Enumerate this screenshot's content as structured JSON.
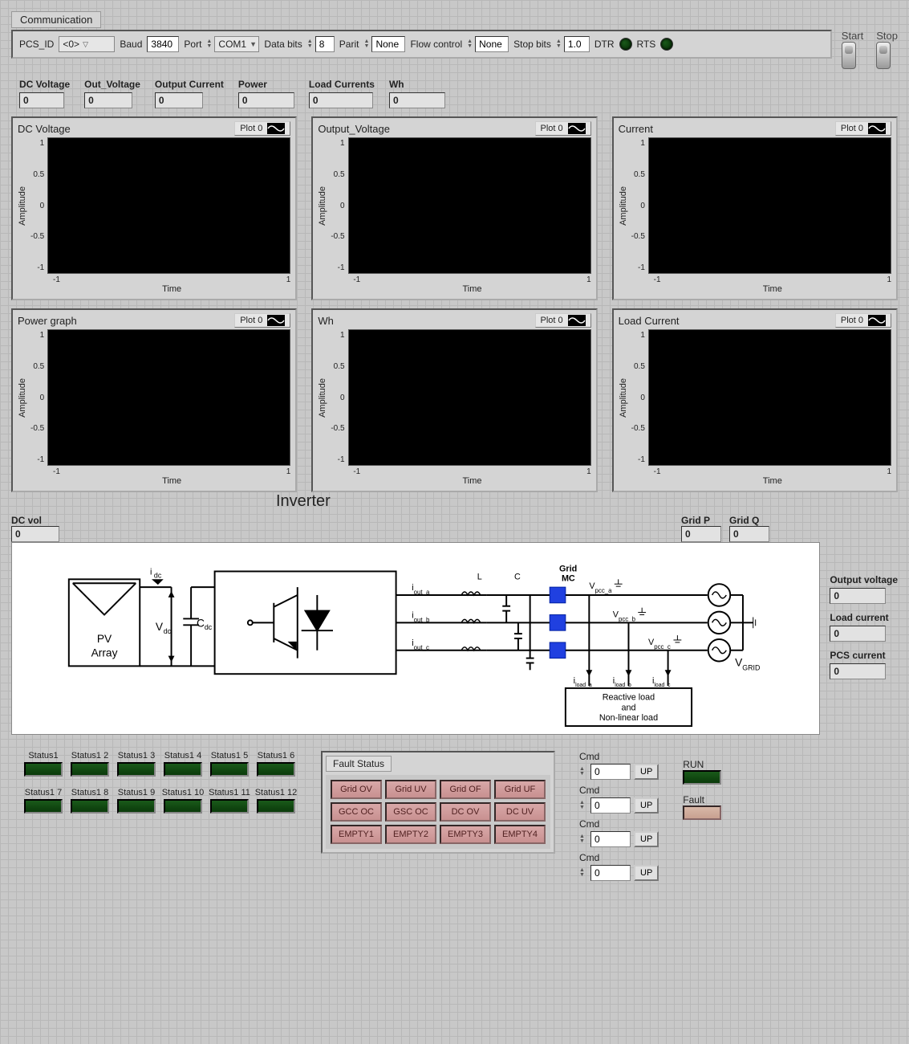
{
  "comm": {
    "section_label": "Communication",
    "pcs_id_label": "PCS_ID",
    "pcs_id_value": "<0>",
    "baud_label": "Baud",
    "baud_value": "3840",
    "port_label": "Port",
    "port_value": "COM1",
    "databits_label": "Data bits",
    "databits_value": "8",
    "parity_label": "Parit",
    "parity_value": "None",
    "flow_label": "Flow control",
    "flow_value": "None",
    "stopbits_label": "Stop bits",
    "stopbits_value": "1.0",
    "dtr_label": "DTR",
    "rts_label": "RTS",
    "start_label": "Start",
    "stop_label": "Stop"
  },
  "readouts": {
    "dc_voltage_label": "DC Voltage",
    "dc_voltage": "0",
    "out_voltage_label": "Out_Voltage",
    "out_voltage": "0",
    "output_current_label": "Output Current",
    "output_current": "0",
    "power_label": "Power",
    "power": "0",
    "load_currents_label": "Load Currents",
    "load_currents": "0",
    "wh_label": "Wh",
    "wh": "0"
  },
  "charts": {
    "plot_tag": "Plot 0",
    "ylabel": "Amplitude",
    "xlabel": "Time",
    "ylim": [
      -1,
      1
    ],
    "xlim": [
      -1,
      1
    ],
    "yticks": [
      "1",
      "0.5",
      "0",
      "-0.5",
      "-1"
    ],
    "xticks": [
      "-1",
      "1"
    ],
    "bg_color": "#000000",
    "panels": [
      {
        "title": "DC Voltage"
      },
      {
        "title": "Output_Voltage"
      },
      {
        "title": "Current"
      },
      {
        "title": "Power graph"
      },
      {
        "title": "Wh"
      },
      {
        "title": "Load Current"
      }
    ]
  },
  "diagram": {
    "dc_vol_label": "DC vol",
    "dc_vol": "0",
    "inverter_title": "Inverter",
    "grid_p_label": "Grid P",
    "grid_p": "0",
    "grid_q_label": "Grid Q",
    "grid_q": "0",
    "output_voltage_label": "Output voltage",
    "output_voltage": "0",
    "load_current_label": "Load current",
    "load_current": "0",
    "pcs_current_label": "PCS current",
    "pcs_current": "0",
    "labels": {
      "pv_array": "PV\nArray",
      "idc": "i",
      "idc_sub": "dc",
      "vdc": "V",
      "vdc_sub": "dc",
      "cdc": "C",
      "cdc_sub": "dc",
      "iout_a": "i_out_a",
      "iout_b": "i_out_b",
      "iout_c": "i_out_c",
      "L": "L",
      "C": "C",
      "grid_mc": "Grid\nMC",
      "vpcc_a": "V_pcc_a",
      "vpcc_b": "V_pcc_b",
      "vpcc_c": "V_pcc_c",
      "iload_a": "i_load_a",
      "iload_b": "i_load_b",
      "iload_c": "i_load_c",
      "vgrid": "V_GRID",
      "load_box": "Reactive load\nand\nNon-linear load"
    },
    "colors": {
      "grid_mc_block": "#2040e0",
      "bg": "#ffffff",
      "line": "#000000"
    }
  },
  "status": {
    "row1": [
      "Status1",
      "Status1 2",
      "Status1 3",
      "Status1 4",
      "Status1 5",
      "Status1 6"
    ],
    "row2": [
      "Status1 7",
      "Status1 8",
      "Status1 9",
      "Status1 10",
      "Status1 11",
      "Status1 12"
    ],
    "led_on_color": "#1a5a1a"
  },
  "fault": {
    "title": "Fault Status",
    "cells": [
      "Grid OV",
      "Grid UV",
      "Grid OF",
      "Grid UF",
      "GCC OC",
      "GSC OC",
      "DC OV",
      "DC UV",
      "EMPTY1",
      "EMPTY2",
      "EMPTY3",
      "EMPTY4"
    ],
    "cell_color": "#d8a8a8"
  },
  "cmd": {
    "label": "Cmd",
    "value": "0",
    "up_label": "UP",
    "count": 4
  },
  "runfault": {
    "run_label": "RUN",
    "fault_label": "Fault"
  }
}
